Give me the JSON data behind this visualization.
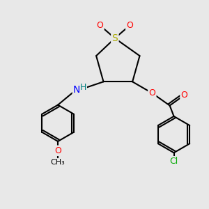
{
  "background_color": "#e8e8e8",
  "bond_color": "#000000",
  "atom_colors": {
    "S": "#aaaa00",
    "O": "#ff0000",
    "N": "#0000ff",
    "H": "#008080",
    "Cl": "#00aa00",
    "C": "#000000"
  },
  "figsize": [
    3.0,
    3.0
  ],
  "dpi": 100
}
